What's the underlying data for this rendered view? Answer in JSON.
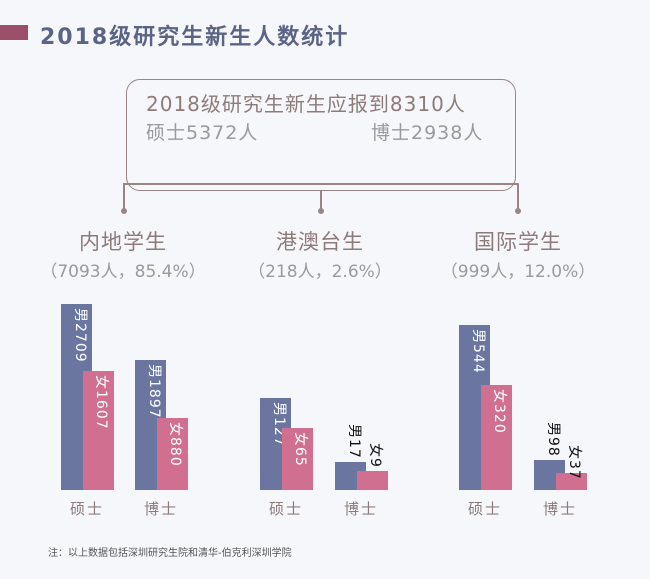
{
  "header": {
    "title": "2018级研究生新生人数统计"
  },
  "summary": {
    "total": "2018级研究生新生应报到8310人",
    "master": "硕士5372人",
    "doctor": "博士2938人"
  },
  "chart_data": {
    "type": "bar",
    "colors": {
      "male": "#6a76a0",
      "female": "#d06f8f"
    },
    "groups": [
      {
        "name": "内地学生",
        "sub": "（7093人，85.4%）",
        "categories": [
          {
            "label": "硕士",
            "male": 2709,
            "female": 1607,
            "male_label": "男2709",
            "female_label": "女1607"
          },
          {
            "label": "博士",
            "male": 1897,
            "female": 880,
            "male_label": "男1897",
            "female_label": "女880"
          }
        ]
      },
      {
        "name": "港澳台生",
        "sub": "（218人，2.6%）",
        "categories": [
          {
            "label": "硕士",
            "male": 127,
            "female": 65,
            "male_label": "男127",
            "female_label": "女65"
          },
          {
            "label": "博士",
            "male": 17,
            "female": 9,
            "male_label": "男17",
            "female_label": "女9"
          }
        ]
      },
      {
        "name": "国际学生",
        "sub": "（999人，12.0%）",
        "categories": [
          {
            "label": "硕士",
            "male": 544,
            "female": 320,
            "male_label": "男544",
            "female_label": "女320"
          },
          {
            "label": "博士",
            "male": 98,
            "female": 37,
            "male_label": "男98",
            "female_label": "女37"
          }
        ]
      }
    ]
  },
  "footnote": "注：以上数据包括深圳研究生院和清华-伯克利深圳学院"
}
